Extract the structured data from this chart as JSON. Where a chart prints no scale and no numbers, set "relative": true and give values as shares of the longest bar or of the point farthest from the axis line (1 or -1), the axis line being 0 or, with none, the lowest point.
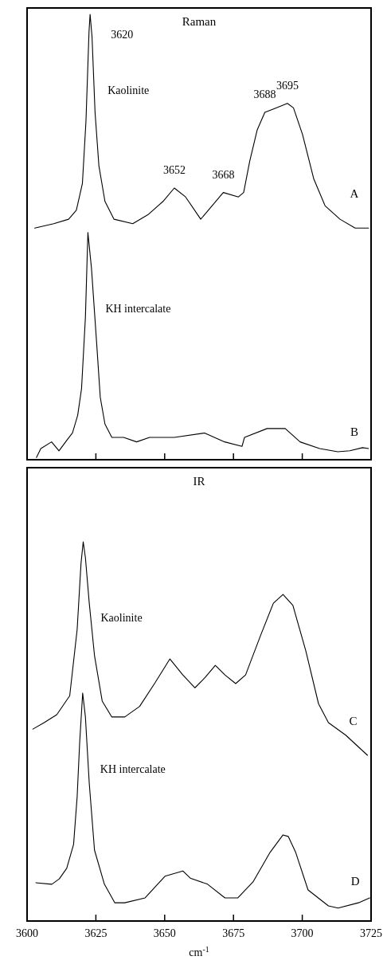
{
  "chart_data": [
    {
      "type": "line",
      "title": "Raman",
      "relative": true,
      "xlim": [
        3600,
        3725
      ],
      "xticks": [
        3625,
        3650,
        3675,
        3700
      ],
      "tick_labels": false,
      "annotations": [
        {
          "text": "3620",
          "x": 3622.9,
          "y": 1.0
        },
        "Kaolinite",
        {
          "text": "3652",
          "x": 3653.5,
          "y": 0.61
        },
        {
          "text": "3668",
          "x": 3671.3,
          "y": 0.6
        },
        {
          "text": "3688",
          "x": 3686.4,
          "y": 0.78
        },
        {
          "text": "3695",
          "x": 3694.6,
          "y": 0.8
        },
        "KH intercalate"
      ],
      "series": [
        {
          "name": "A",
          "color": "#000000",
          "x": [
            3602.8,
            3609.7,
            3615.1,
            3617.9,
            3620.1,
            3621.4,
            3622.5,
            3622.9,
            3623.6,
            3624.7,
            3626.1,
            3628.3,
            3631.6,
            3638.4,
            3643.9,
            3649.4,
            3653.5,
            3657.6,
            3663.1,
            3667.2,
            3671.3,
            3676.8,
            3678.7,
            3680.9,
            3683.6,
            3686.4,
            3690.5,
            3694.6,
            3696.8,
            3700.1,
            3704.2,
            3708.3,
            3713.7,
            3719.2,
            3724.1
          ],
          "values": [
            0.52,
            0.53,
            0.54,
            0.56,
            0.62,
            0.76,
            0.96,
            1.0,
            0.95,
            0.78,
            0.66,
            0.58,
            0.54,
            0.53,
            0.55,
            0.58,
            0.61,
            0.59,
            0.54,
            0.57,
            0.6,
            0.59,
            0.6,
            0.67,
            0.74,
            0.78,
            0.79,
            0.8,
            0.79,
            0.73,
            0.63,
            0.57,
            0.54,
            0.52,
            0.52
          ]
        },
        {
          "name": "B",
          "color": "#000000",
          "x": [
            3603.4,
            3605.0,
            3608.9,
            3611.6,
            3614.6,
            3616.5,
            3618.4,
            3619.8,
            3621.2,
            3622.1,
            3623.4,
            3625.3,
            3626.6,
            3628.3,
            3630.8,
            3635.1,
            3639.8,
            3644.5,
            3653.5,
            3664.5,
            3671.8,
            3678.1,
            3679.0,
            3687.2,
            3693.8,
            3699.2,
            3706.3,
            3712.9,
            3717.3,
            3721.9,
            3724.1
          ],
          "values": [
            0.005,
            0.025,
            0.04,
            0.02,
            0.045,
            0.06,
            0.1,
            0.16,
            0.32,
            0.51,
            0.43,
            0.26,
            0.14,
            0.08,
            0.05,
            0.05,
            0.04,
            0.05,
            0.05,
            0.06,
            0.04,
            0.03,
            0.05,
            0.07,
            0.07,
            0.04,
            0.025,
            0.018,
            0.02,
            0.027,
            0.025
          ]
        }
      ]
    },
    {
      "type": "line",
      "title": "IR",
      "xlabel": "cm$^{-1}$",
      "relative": true,
      "xlim": [
        3600,
        3725
      ],
      "xticks": [
        3600,
        3625,
        3650,
        3675,
        3700,
        3725
      ],
      "tick_labels": "x",
      "annotations": [
        "Kaolinite",
        "KH intercalate"
      ],
      "series": [
        {
          "name": "C",
          "color": "#000000",
          "x": [
            3602.1,
            3606.2,
            3610.8,
            3615.5,
            3618.2,
            3619.6,
            3620.4,
            3621.2,
            3622.6,
            3624.5,
            3627.3,
            3630.8,
            3635.5,
            3640.9,
            3646.5,
            3651.9,
            3656.6,
            3661.0,
            3664.8,
            3668.4,
            3671.9,
            3675.8,
            3679.4,
            3684.9,
            3689.5,
            3693.0,
            3696.6,
            3701.3,
            3705.9,
            3709.5,
            3715.8,
            3723.7
          ],
          "values": [
            0.506,
            0.523,
            0.544,
            0.594,
            0.769,
            0.943,
            1.0,
            0.958,
            0.838,
            0.7,
            0.58,
            0.538,
            0.538,
            0.566,
            0.628,
            0.691,
            0.649,
            0.615,
            0.643,
            0.674,
            0.649,
            0.626,
            0.649,
            0.754,
            0.838,
            0.861,
            0.832,
            0.712,
            0.573,
            0.523,
            0.49,
            0.437
          ]
        },
        {
          "name": "D",
          "color": "#000000",
          "x": [
            3603.2,
            3609.0,
            3611.7,
            3614.4,
            3616.9,
            3618.2,
            3619.1,
            3620.2,
            3621.2,
            3622.6,
            3624.5,
            3628.1,
            3631.9,
            3635.5,
            3642.9,
            3650.1,
            3656.6,
            3659.3,
            3665.6,
            3671.9,
            3676.6,
            3682.1,
            3688.3,
            3693.0,
            3694.9,
            3697.6,
            3702.1,
            3709.5,
            3713.0,
            3720.4,
            3724.5
          ],
          "values": [
            0.101,
            0.097,
            0.111,
            0.139,
            0.202,
            0.328,
            0.469,
            0.601,
            0.538,
            0.363,
            0.187,
            0.097,
            0.048,
            0.048,
            0.061,
            0.118,
            0.132,
            0.113,
            0.097,
            0.061,
            0.061,
            0.103,
            0.181,
            0.227,
            0.223,
            0.181,
            0.082,
            0.04,
            0.034,
            0.048,
            0.061
          ]
        }
      ]
    }
  ]
}
